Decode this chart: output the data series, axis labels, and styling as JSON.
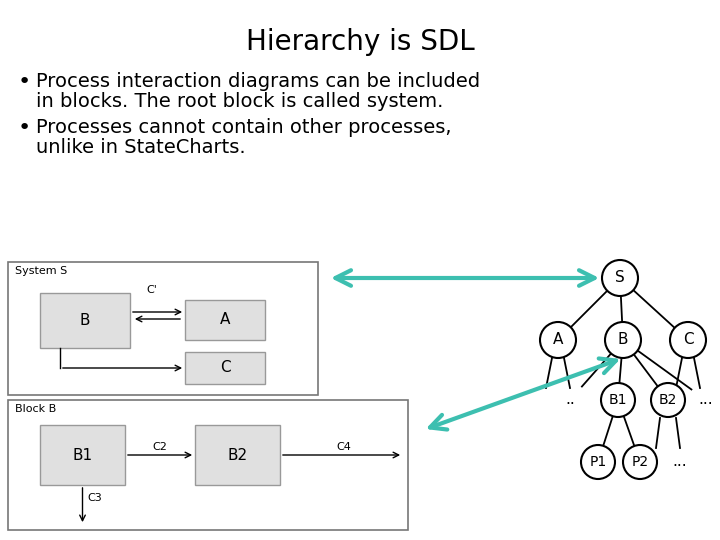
{
  "title": "Hierarchy is SDL",
  "bullet1_line1": "Process interaction diagrams can be included",
  "bullet1_line2": "in blocks. The root block is called system.",
  "bullet2_line1": "Processes cannot contain other processes,",
  "bullet2_line2": "unlike in StateCharts.",
  "bg_color": "#ffffff",
  "title_fontsize": 20,
  "body_fontsize": 14,
  "teal_color": "#3DBFB0",
  "box_color": "#e0e0e0",
  "box_edge_color": "#888888"
}
